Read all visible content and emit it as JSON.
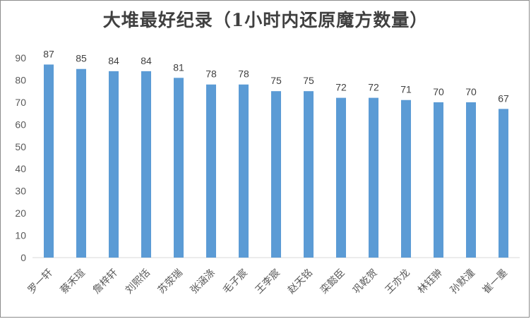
{
  "chart_data": {
    "type": "bar",
    "title": "大堆最好纪录（1小时内还原魔方数量）",
    "xlabel": "",
    "ylabel": "",
    "ylim": [
      0,
      90
    ],
    "yticks": [
      0,
      10,
      20,
      30,
      40,
      50,
      60,
      70,
      80,
      90
    ],
    "grid": false,
    "legend": "none",
    "bar_color": "#5B9BD5",
    "categories": [
      "罗一轩",
      "蔡禾瑄",
      "詹梓轩",
      "刘熙恬",
      "苏荥瑞",
      "张涵涤",
      "毛子宸",
      "王李宸",
      "赵天铭",
      "栾懿臣",
      "巩乾贺",
      "王亦龙",
      "林钰翀",
      "孙默潼",
      "崔一墨"
    ],
    "values": [
      87,
      85,
      84,
      84,
      81,
      78,
      78,
      75,
      75,
      72,
      72,
      71,
      70,
      70,
      67
    ]
  }
}
